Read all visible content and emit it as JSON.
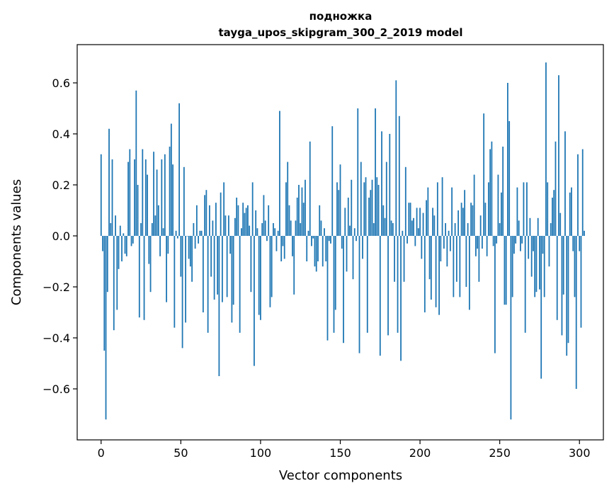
{
  "chart_data": {
    "type": "bar",
    "title": "подножка",
    "subtitle": "tayga_upos_skipgram_300_2_2019 model",
    "xlabel": "Vector components",
    "ylabel": "Components values",
    "xlim": [
      -15,
      315
    ],
    "ylim": [
      -0.8,
      0.75
    ],
    "xticks": [
      0,
      50,
      100,
      150,
      200,
      250,
      300
    ],
    "xtick_labels": [
      "0",
      "50",
      "100",
      "150",
      "200",
      "250",
      "300"
    ],
    "yticks": [
      -0.6,
      -0.4,
      -0.2,
      0.0,
      0.2,
      0.4,
      0.6
    ],
    "ytick_labels": [
      "−0.6",
      "−0.4",
      "−0.2",
      "0.0",
      "0.2",
      "0.4",
      "0.6"
    ],
    "grid": false,
    "bar_color": "#1f77b4",
    "values": [
      0.32,
      -0.06,
      -0.45,
      -0.72,
      -0.22,
      0.42,
      0.05,
      0.3,
      -0.37,
      0.08,
      -0.29,
      -0.13,
      0.04,
      -0.1,
      0.01,
      -0.07,
      -0.08,
      0.29,
      0.34,
      -0.04,
      -0.03,
      0.3,
      0.57,
      0.2,
      -0.32,
      0.05,
      0.34,
      -0.33,
      0.3,
      0.24,
      -0.11,
      -0.22,
      0.05,
      0.33,
      0.08,
      0.26,
      0.12,
      -0.08,
      0.3,
      0.03,
      0.32,
      -0.26,
      -0.07,
      0.35,
      0.44,
      0.28,
      -0.36,
      0.02,
      -0.01,
      0.52,
      -0.16,
      -0.44,
      0.27,
      -0.34,
      0.0,
      -0.09,
      -0.12,
      -0.18,
      0.05,
      -0.05,
      0.12,
      -0.03,
      0.02,
      0.02,
      -0.3,
      0.16,
      0.18,
      -0.38,
      0.12,
      -0.16,
      0.06,
      -0.25,
      0.13,
      -0.23,
      -0.55,
      0.17,
      -0.26,
      0.21,
      0.08,
      -0.24,
      0.08,
      -0.07,
      -0.34,
      -0.27,
      0.07,
      0.15,
      0.12,
      -0.38,
      0.03,
      0.13,
      0.09,
      0.11,
      0.12,
      0.04,
      -0.22,
      0.21,
      -0.51,
      0.1,
      0.03,
      -0.31,
      -0.33,
      0.05,
      0.16,
      0.06,
      -0.02,
      0.12,
      -0.28,
      -0.24,
      0.05,
      0.03,
      -0.06,
      0.02,
      0.49,
      -0.1,
      -0.04,
      -0.09,
      0.21,
      0.29,
      0.12,
      0.06,
      -0.08,
      -0.23,
      0.06,
      0.15,
      0.2,
      0.05,
      0.19,
      0.13,
      0.22,
      -0.1,
      0.02,
      0.37,
      -0.04,
      -0.01,
      -0.12,
      -0.14,
      -0.1,
      0.12,
      0.06,
      -0.12,
      0.03,
      -0.1,
      -0.41,
      -0.02,
      -0.03,
      0.43,
      -0.38,
      -0.29,
      0.21,
      0.18,
      0.28,
      -0.05,
      -0.42,
      0.11,
      -0.14,
      0.15,
      0.04,
      0.22,
      -0.17,
      0.03,
      -0.02,
      0.5,
      -0.46,
      0.29,
      -0.09,
      0.21,
      0.23,
      -0.38,
      0.15,
      0.18,
      0.22,
      0.05,
      0.5,
      0.23,
      0.2,
      -0.47,
      0.41,
      0.12,
      0.07,
      0.29,
      -0.39,
      0.4,
      0.06,
      0.05,
      -0.18,
      0.61,
      -0.38,
      0.47,
      -0.49,
      0.02,
      -0.18,
      0.27,
      -0.03,
      0.13,
      0.13,
      0.06,
      0.07,
      -0.04,
      0.11,
      0.03,
      0.11,
      -0.09,
      0.09,
      -0.3,
      0.14,
      0.19,
      -0.17,
      -0.25,
      0.11,
      0.08,
      -0.28,
      0.21,
      -0.31,
      -0.1,
      0.23,
      -0.05,
      0.05,
      -0.12,
      0.02,
      -0.06,
      0.19,
      -0.24,
      0.05,
      -0.18,
      0.1,
      -0.24,
      0.13,
      0.11,
      0.18,
      -0.2,
      0.05,
      -0.29,
      0.13,
      0.12,
      0.24,
      -0.08,
      -0.05,
      -0.18,
      0.08,
      -0.05,
      0.48,
      0.13,
      -0.08,
      0.21,
      0.34,
      0.37,
      -0.04,
      -0.46,
      -0.03,
      0.24,
      0.05,
      0.17,
      0.35,
      -0.27,
      -0.27,
      0.6,
      0.45,
      -0.72,
      -0.24,
      -0.07,
      -0.03,
      0.19,
      0.06,
      -0.06,
      -0.03,
      0.21,
      -0.38,
      0.21,
      -0.09,
      0.07,
      -0.16,
      -0.06,
      -0.24,
      -0.22,
      0.07,
      -0.21,
      -0.56,
      -0.07,
      -0.24,
      0.68,
      0.21,
      -0.12,
      0.05,
      0.15,
      0.18,
      0.37,
      -0.33,
      0.63,
      0.09,
      -0.39,
      -0.23,
      0.41,
      -0.47,
      -0.42,
      0.17,
      0.19,
      -0.06,
      -0.24,
      -0.6,
      0.32,
      -0.06,
      -0.36,
      0.34,
      0.02
    ]
  }
}
